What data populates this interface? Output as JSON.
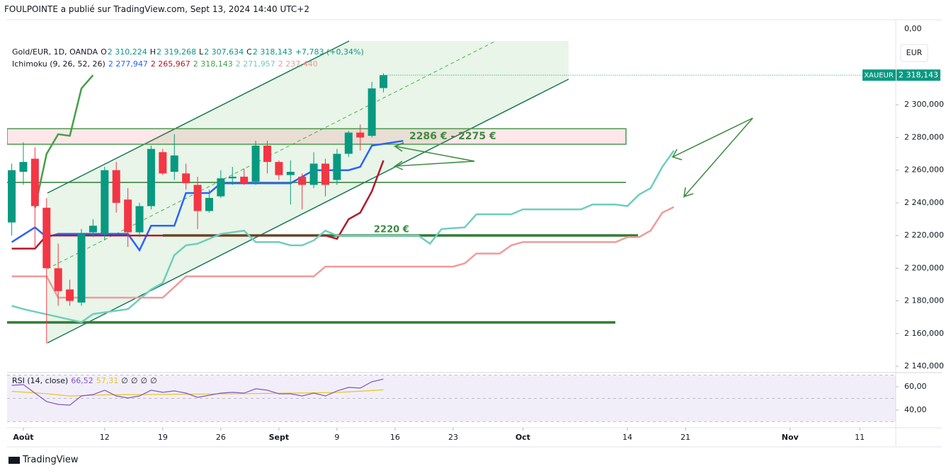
{
  "header": {
    "attribution": "FOULPOINTE a publié sur TradingView.com, Sept 13, 2024 14:40 UTC+2"
  },
  "footer": {
    "brand": "TradingView"
  },
  "chart_data": {
    "type": "candlestick",
    "title": "Gold/EUR, 1D, OANDA",
    "x": [
      0,
      1,
      2,
      3,
      4,
      5,
      6,
      7,
      8,
      9,
      10,
      11,
      12,
      13,
      14,
      15,
      16,
      17,
      18,
      19,
      20,
      21,
      22,
      23,
      24,
      25,
      26,
      27,
      28,
      29,
      30,
      31,
      32
    ],
    "open": [
      2228,
      2259,
      2267,
      2237,
      2200,
      2187,
      2179,
      2222,
      2221,
      2260,
      2242,
      2222,
      2238,
      2271,
      2259,
      2258,
      2251,
      2235,
      2244,
      2255,
      2256,
      2253,
      2275,
      2265,
      2257,
      2256,
      2251,
      2264,
      2254,
      2270,
      2283,
      2281,
      2310.224
    ],
    "high": [
      2264,
      2277,
      2274,
      2243,
      2215,
      2193,
      2224,
      2230,
      2262,
      2265,
      2249,
      2240,
      2275,
      2273,
      2282,
      2264,
      2256,
      2248,
      2260,
      2262,
      2261,
      2278,
      2278,
      2266,
      2266,
      2258,
      2271,
      2267,
      2273,
      2284,
      2288,
      2314,
      2319.268
    ],
    "low": [
      2220,
      2251,
      2213,
      2154,
      2177,
      2177,
      2177,
      2219,
      2217,
      2234,
      2213,
      2219,
      2236,
      2257,
      2254,
      2248,
      2224,
      2234,
      2243,
      2251,
      2251,
      2251,
      2258,
      2254,
      2239,
      2236,
      2249,
      2244,
      2251,
      2268,
      2272,
      2280,
      2307.634
    ],
    "close": [
      2260,
      2265,
      2238,
      2200,
      2186,
      2180,
      2221,
      2226,
      2260,
      2240,
      2222,
      2238,
      2273,
      2258,
      2269,
      2252,
      2235,
      2243,
      2255,
      2256,
      2252,
      2275,
      2265,
      2257,
      2259,
      2251,
      2264,
      2251,
      2270,
      2283,
      2280,
      2310,
      2318.143
    ],
    "up_color": "#089981",
    "down_color": "#f23645",
    "ohlc_legend": {
      "O_key": "O",
      "O": "2 310,224",
      "H_key": "H",
      "H": "2 319,268",
      "L_key": "L",
      "L": "2 307,634",
      "C_key": "C",
      "C": "2 318,143",
      "change": "+7,783 (+0,34%)"
    },
    "xlim": [
      -0.4,
      76.1
    ],
    "xticks": [
      {
        "value": 1,
        "label": "Août"
      },
      {
        "value": 8,
        "label": "12"
      },
      {
        "value": 13,
        "label": "19"
      },
      {
        "value": 18,
        "label": "26"
      },
      {
        "value": 23,
        "label": "Sept"
      },
      {
        "value": 28,
        "label": "9"
      },
      {
        "value": 33,
        "label": "16"
      },
      {
        "value": 38,
        "label": "23"
      },
      {
        "value": 44,
        "label": "Oct"
      },
      {
        "value": 53,
        "label": "14"
      },
      {
        "value": 58,
        "label": "21"
      },
      {
        "value": 67,
        "label": "Nov"
      },
      {
        "value": 73,
        "label": "11"
      }
    ],
    "ylim": [
      2137,
      2352
    ],
    "yticks": [
      {
        "value": 2140,
        "label": "2 140,000"
      },
      {
        "value": 2160,
        "label": "2 160,000"
      },
      {
        "value": 2180,
        "label": "2 180,000"
      },
      {
        "value": 2200,
        "label": "2 200,000"
      },
      {
        "value": 2220,
        "label": "2 220,000"
      },
      {
        "value": 2240,
        "label": "2 240,000"
      },
      {
        "value": 2260,
        "label": "2 260,000"
      },
      {
        "value": 2280,
        "label": "2 280,000"
      },
      {
        "value": 2300,
        "label": "2 300,000"
      }
    ],
    "top_scale_label": "0,00",
    "currency": "EUR",
    "price_tag": {
      "symbol": "XAUEUR",
      "label": "2 318,143"
    },
    "indicator": "Ichimoku (9, 26, 52, 26)",
    "series": [
      {
        "color": "#2962ff",
        "value_label": "2 277,947",
        "x": [
          0,
          2,
          3,
          4,
          10,
          11,
          12,
          14,
          15,
          17,
          18,
          24,
          26,
          29,
          30,
          31,
          33.7
        ],
        "values": [
          2216,
          2225,
          2219,
          2221,
          2221,
          2211,
          2226,
          2226,
          2246,
          2246,
          2252,
          2252,
          2260,
          2260,
          2262,
          2275,
          2277.947
        ]
      },
      {
        "color": "#b2182b",
        "value_label": "2 265,967",
        "x": [
          0,
          2,
          3,
          27,
          28,
          29,
          30,
          31,
          32
        ],
        "values": [
          2212,
          2212,
          2220,
          2220,
          2218,
          2230,
          2234,
          2247,
          2265.967
        ]
      },
      {
        "color": "#43a047",
        "value_label": "2 318,143",
        "x": [
          2,
          3,
          4,
          5,
          6,
          7
        ],
        "values": [
          2237,
          2270,
          2282,
          2281,
          2310,
          2318.143
        ]
      },
      {
        "color": "#6fcdbd",
        "value_label": "2 271,957",
        "x": [
          0,
          1,
          6,
          7,
          10,
          12,
          13,
          14,
          15,
          16,
          18,
          20,
          21,
          23,
          24,
          25,
          26,
          27,
          28,
          35,
          36,
          37,
          39,
          40,
          43,
          44,
          45,
          49,
          50,
          52,
          53,
          54,
          55,
          56,
          57
        ],
        "values": [
          2177,
          2175,
          2167,
          2172,
          2175,
          2187,
          2191,
          2208,
          2214,
          2215,
          2221,
          2223,
          2216,
          2216,
          2214,
          2214,
          2217,
          2223,
          2220,
          2220,
          2215,
          2224,
          2225,
          2233,
          2233,
          2236,
          2236,
          2236,
          2239,
          2239,
          2238,
          2245,
          2249,
          2262,
          2271.957
        ]
      },
      {
        "color": "#f09a9a",
        "value_label": "2 237,440",
        "x": [
          0,
          3,
          4,
          13,
          15,
          26,
          27,
          38,
          39,
          40,
          42,
          43,
          44,
          52,
          53,
          54,
          55,
          56,
          57
        ],
        "values": [
          2195,
          2195,
          2182,
          2182,
          2195,
          2195,
          2201,
          2201,
          2203,
          2209,
          2209,
          2214,
          2216,
          2216,
          2219,
          2219,
          2223,
          2234,
          2237.44
        ]
      }
    ],
    "annotations": [
      {
        "text": "2286 € - 2275 €"
      },
      {
        "text": "2220 €"
      }
    ],
    "rsi": {
      "title": "RSI (14, close)",
      "na_labels": [
        "∅",
        "∅",
        "∅",
        "∅"
      ],
      "ylim": [
        24.8,
        72.1
      ],
      "yticks": [
        {
          "value": 60,
          "label": "60,00"
        },
        {
          "value": 40,
          "label": "40,00"
        }
      ],
      "levels": [
        70,
        50,
        30
      ],
      "series": [
        {
          "color": "#7e57c2",
          "value_label": "66,52",
          "x": [
            0,
            1,
            2,
            3,
            4,
            5,
            6,
            7,
            8,
            9,
            10,
            11,
            12,
            13,
            14,
            15,
            16,
            17,
            18,
            19,
            20,
            21,
            22,
            23,
            24,
            25,
            26,
            27,
            28,
            29,
            30,
            31,
            32
          ],
          "values": [
            61.2,
            61.8,
            54.5,
            47.3,
            44.8,
            44.2,
            52.1,
            53.3,
            57,
            52.1,
            50.3,
            52.1,
            57,
            55.2,
            56.4,
            54.5,
            50.9,
            52.7,
            54.5,
            55.2,
            54.5,
            58.2,
            57,
            53.9,
            53.9,
            52.1,
            54.5,
            52.1,
            56.4,
            59.4,
            58.8,
            64.2,
            66.52
          ]
        },
        {
          "color": "#e6c619",
          "value_label": "57,31",
          "x": [
            0,
            3,
            5,
            8,
            20,
            28,
            32
          ],
          "values": [
            56,
            54,
            52,
            53,
            54,
            55,
            57.31
          ]
        }
      ]
    }
  }
}
